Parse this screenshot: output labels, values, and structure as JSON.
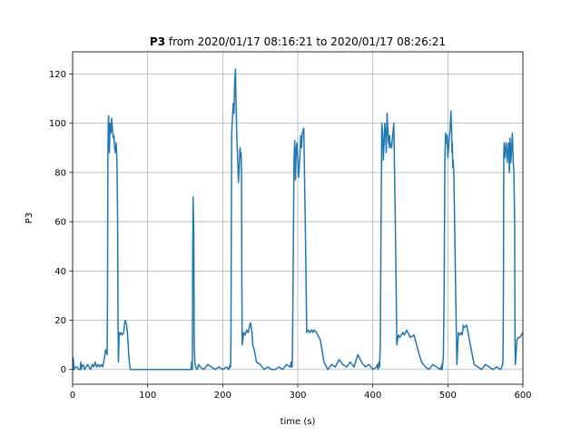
{
  "chart_data": {
    "type": "line",
    "title_bold": "P3",
    "title_rest": " from 2020/01/17 08:16:21 to 2020/01/17 08:26:21",
    "xlabel": "time (s)",
    "ylabel": "P3",
    "xlim": [
      0,
      600
    ],
    "ylim": [
      -6,
      129
    ],
    "xticks": [
      0,
      100,
      200,
      300,
      400,
      500,
      600
    ],
    "yticks": [
      0,
      20,
      40,
      60,
      80,
      100,
      120
    ],
    "grid": true,
    "color": "#1f77b4",
    "series": [
      {
        "x": [
          0,
          1,
          1.5,
          2,
          4,
          6,
          8,
          10,
          11,
          11.5,
          12,
          14,
          16,
          18,
          20,
          22,
          24,
          26,
          28,
          30,
          32,
          34,
          36,
          38,
          40,
          42,
          44,
          46,
          46.5,
          47,
          47.5,
          48,
          48.5,
          49,
          49.5,
          50,
          51,
          52,
          53,
          54,
          55,
          56,
          57,
          58,
          59,
          60,
          60.5,
          61,
          61.5,
          62,
          63,
          64,
          66,
          68,
          69,
          70,
          71,
          72,
          73,
          74,
          75,
          76,
          77,
          78,
          78.5,
          79,
          80,
          85,
          90,
          100,
          120,
          140,
          150,
          157,
          158,
          158.5,
          159,
          159.5,
          160,
          160.5,
          161,
          161.5,
          162,
          163,
          164,
          166,
          168,
          170,
          175,
          180,
          185,
          190,
          195,
          200,
          205,
          208,
          209,
          210,
          210.5,
          211,
          211.5,
          212,
          213,
          214,
          215,
          216,
          217,
          217.5,
          218,
          218.5,
          219,
          220,
          221,
          222,
          223,
          224,
          224.5,
          225,
          225.5,
          226,
          228,
          230,
          232,
          234,
          236,
          237,
          238,
          239,
          240,
          242,
          245,
          250,
          255,
          260,
          265,
          270,
          275,
          280,
          285,
          290,
          291,
          291.5,
          292,
          292.5,
          293,
          294,
          295,
          296,
          296.5,
          297,
          298,
          299,
          300,
          301,
          302,
          303,
          303.5,
          304,
          305,
          306,
          308,
          310,
          312,
          314,
          316,
          318,
          319,
          320,
          322,
          325,
          330,
          335,
          340,
          345,
          350,
          355,
          360,
          365,
          370,
          375,
          380,
          385,
          390,
          395,
          400,
          405,
          406,
          406.5,
          407,
          407.5,
          408,
          409,
          410,
          411,
          412,
          413,
          414,
          415,
          416,
          417,
          418,
          419,
          420,
          421,
          421.5,
          422,
          422.5,
          423,
          425,
          428,
          430,
          432,
          434,
          436,
          438,
          440,
          442,
          445,
          450,
          455,
          460,
          465,
          470,
          475,
          480,
          485,
          490,
          491,
          491.5,
          492,
          492.5,
          493,
          494,
          495,
          496,
          497,
          498,
          499,
          500,
          501,
          502,
          503,
          504,
          505,
          505.5,
          506,
          506.5,
          507,
          508,
          510,
          512,
          514,
          516,
          518,
          519,
          520,
          520.5,
          521,
          522,
          525,
          530,
          535,
          540,
          545,
          550,
          555,
          560,
          565,
          570,
          572,
          573,
          573.5,
          574,
          574.5,
          575,
          576,
          577,
          578,
          579,
          580,
          581,
          582,
          583,
          584,
          585,
          586,
          587,
          588,
          588.5,
          589,
          589.5,
          590,
          592,
          594,
          596,
          598,
          600
        ],
        "y": [
          5,
          4,
          0,
          0,
          1,
          1,
          0,
          0,
          3,
          0,
          1,
          2,
          0,
          1,
          2,
          1,
          0,
          2,
          1,
          3,
          1,
          2,
          1,
          2,
          1,
          4,
          8,
          6,
          30,
          85,
          100,
          103,
          92,
          88,
          95,
          100,
          96,
          102,
          98,
          94,
          95,
          90,
          88,
          92,
          85,
          60,
          20,
          3,
          8,
          15,
          14,
          15,
          14,
          15,
          18,
          20,
          19,
          18,
          15,
          10,
          5,
          2,
          0,
          0,
          0,
          0,
          0,
          0,
          0,
          0,
          0,
          0,
          0,
          0,
          0,
          3,
          1,
          0,
          45,
          70,
          62,
          55,
          10,
          2,
          1,
          0,
          2,
          1,
          0,
          2,
          1,
          0,
          1,
          0,
          1,
          0,
          1,
          2,
          1,
          15,
          60,
          96,
          102,
          108,
          104,
          117,
          122,
          112,
          106,
          98,
          92,
          85,
          76,
          82,
          90,
          86,
          88,
          80,
          35,
          10,
          15,
          14,
          16,
          15,
          18,
          19,
          17,
          15,
          10,
          8,
          3,
          2,
          0,
          1,
          0,
          0,
          1,
          0,
          2,
          1,
          3,
          1,
          2,
          1,
          8,
          45,
          85,
          93,
          82,
          77,
          90,
          92,
          85,
          78,
          82,
          88,
          92,
          95,
          90,
          96,
          98,
          60,
          15,
          16,
          15,
          16,
          16,
          15,
          16,
          15,
          12,
          3,
          0,
          2,
          1,
          4,
          2,
          1,
          3,
          1,
          6,
          3,
          1,
          2,
          0,
          1,
          2,
          1,
          0,
          1,
          3,
          1,
          10,
          60,
          100,
          96,
          85,
          92,
          100,
          96,
          88,
          104,
          98,
          92,
          94,
          90,
          95,
          92,
          90,
          100,
          60,
          10,
          14,
          13,
          14,
          15,
          14,
          16,
          13,
          14,
          8,
          3,
          1,
          0,
          2,
          1,
          0,
          1,
          0,
          2,
          0,
          2,
          5,
          30,
          85,
          96,
          92,
          95,
          86,
          90,
          95,
          97,
          105,
          98,
          88,
          92,
          82,
          85,
          80,
          40,
          2,
          15,
          14,
          15,
          14,
          16,
          18,
          17,
          17,
          18,
          10,
          2,
          1,
          0,
          2,
          1,
          0,
          1,
          0,
          1,
          2,
          5,
          30,
          85,
          92,
          86,
          90,
          92,
          84,
          88,
          92,
          80,
          94,
          84,
          90,
          96,
          85,
          80,
          70,
          60,
          10,
          2,
          12,
          13,
          13,
          14,
          15
        ]
      }
    ]
  }
}
